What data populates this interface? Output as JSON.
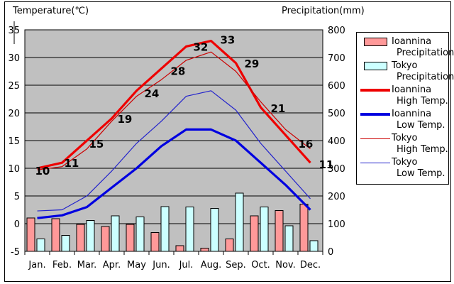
{
  "titles": {
    "left": "Temperature(℃)",
    "right": "Precipitation(mm)"
  },
  "colors": {
    "plot_background": "#C0C0C0",
    "grid": "#000000",
    "ioannina_precip_bar": "#FF9999",
    "tokyo_precip_bar": "#CCFFFF",
    "bar_outline": "#000000",
    "ioannina_high_line": "#EE0000",
    "ioannina_low_line": "#0000E0",
    "tokyo_high_line": "#CC0000",
    "tokyo_low_line": "#2222CC",
    "label_text": "#000000"
  },
  "legend": {
    "items": [
      {
        "name": "Ioannina",
        "type": "Precipitation",
        "swatch": "ioannina-precip"
      },
      {
        "name": "Tokyo",
        "type": "Precipitation",
        "swatch": "tokyo-precip"
      },
      {
        "name": "Ioannina",
        "type": "High Temp.",
        "swatch": "ioannina-high"
      },
      {
        "name": "Ioannina",
        "type": "Low Temp.",
        "swatch": "ioannina-low"
      },
      {
        "name": "Tokyo",
        "type": "High Temp.",
        "swatch": "tokyo-high"
      },
      {
        "name": "Tokyo",
        "type": "Low Temp.",
        "swatch": "tokyo-low"
      }
    ]
  },
  "chart_data": {
    "type": "combo-bar-line",
    "categories": [
      "Jan.",
      "Feb.",
      "Mar.",
      "Apr.",
      "May",
      "Jun.",
      "Jul.",
      "Aug.",
      "Sep.",
      "Oct.",
      "Nov.",
      "Dec."
    ],
    "temp_axis": {
      "title": "Temperature(℃)",
      "min": -5,
      "max": 35,
      "ticks": [
        35,
        30,
        25,
        20,
        15,
        10,
        5,
        0,
        -5
      ]
    },
    "precip_axis": {
      "title": "Precipitation(mm)",
      "min": 0,
      "max": 800,
      "ticks": [
        800,
        700,
        600,
        500,
        400,
        300,
        200,
        100,
        0
      ]
    },
    "grid": "horizontal",
    "legend_position": "right",
    "bar_series": [
      {
        "name": "Ioannina Precipitation",
        "unit": "mm",
        "values": [
          120,
          118,
          98,
          90,
          98,
          68,
          20,
          12,
          45,
          128,
          148,
          170
        ]
      },
      {
        "name": "Tokyo Precipitation",
        "unit": "mm",
        "values": [
          45,
          58,
          112,
          128,
          125,
          162,
          160,
          155,
          210,
          160,
          92,
          38
        ]
      }
    ],
    "line_series": [
      {
        "name": "Ioannina High Temp.",
        "unit": "°C",
        "labeled": true,
        "values": [
          10,
          11,
          15,
          19,
          24,
          28,
          32,
          33,
          29,
          21,
          16,
          11
        ]
      },
      {
        "name": "Ioannina Low Temp.",
        "unit": "°C",
        "labeled": false,
        "values": [
          1,
          1.5,
          3,
          6.5,
          10,
          14,
          17,
          17,
          15,
          11,
          7,
          2.5
        ]
      },
      {
        "name": "Tokyo High Temp.",
        "unit": "°C",
        "labeled": false,
        "values": [
          9.7,
          10.3,
          13.5,
          18.5,
          23,
          26,
          29.5,
          31,
          27.5,
          22,
          17,
          13.5
        ]
      },
      {
        "name": "Tokyo Low Temp.",
        "unit": "°C",
        "labeled": false,
        "values": [
          2.3,
          2.5,
          5,
          9.5,
          14.5,
          18.5,
          23,
          24,
          20.5,
          14.5,
          9.5,
          4.5
        ]
      }
    ],
    "point_labels": [
      "10",
      "11",
      "15",
      "19",
      "24",
      "28",
      "32",
      "33",
      "29",
      "21",
      "16",
      "11"
    ]
  }
}
